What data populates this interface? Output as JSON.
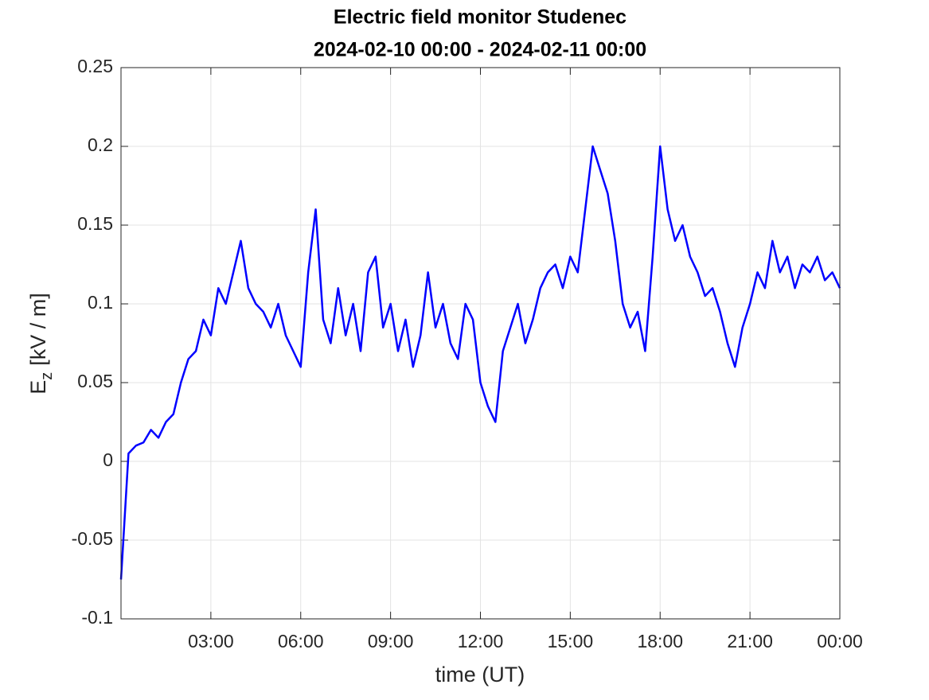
{
  "chart_data": {
    "type": "line",
    "title": "Electric field monitor Studenec",
    "subtitle": "2024-02-10 00:00 - 2024-02-11 00:00",
    "xlabel": "time (UT)",
    "ylabel": [
      "E",
      "z",
      "[kV / m]"
    ],
    "xlim": [
      0,
      24
    ],
    "xticks": [
      {
        "value": 3,
        "label": "03:00"
      },
      {
        "value": 6,
        "label": "06:00"
      },
      {
        "value": 9,
        "label": "09:00"
      },
      {
        "value": 12,
        "label": "12:00"
      },
      {
        "value": 15,
        "label": "15:00"
      },
      {
        "value": 18,
        "label": "18:00"
      },
      {
        "value": 21,
        "label": "21:00"
      },
      {
        "value": 24,
        "label": "00:00"
      }
    ],
    "ylim": [
      -0.1,
      0.25
    ],
    "yticks": [
      -0.1,
      -0.05,
      0,
      0.05,
      0.1,
      0.15,
      0.2,
      0.25
    ],
    "grid": true,
    "series": [
      {
        "color": "#0000ff",
        "x": [
          0,
          0.25,
          0.5,
          0.75,
          1,
          1.25,
          1.5,
          1.75,
          2,
          2.25,
          2.5,
          2.75,
          3,
          3.25,
          3.5,
          3.75,
          4,
          4.25,
          4.5,
          4.75,
          5,
          5.25,
          5.5,
          5.75,
          6,
          6.25,
          6.5,
          6.75,
          7,
          7.25,
          7.5,
          7.75,
          8,
          8.25,
          8.5,
          8.75,
          9,
          9.25,
          9.5,
          9.75,
          10,
          10.25,
          10.5,
          10.75,
          11,
          11.25,
          11.5,
          11.75,
          12,
          12.25,
          12.5,
          12.75,
          13,
          13.25,
          13.5,
          13.75,
          14,
          14.25,
          14.5,
          14.75,
          15,
          15.25,
          15.5,
          15.75,
          16,
          16.25,
          16.5,
          16.75,
          17,
          17.25,
          17.5,
          17.75,
          18,
          18.25,
          18.5,
          18.75,
          19,
          19.25,
          19.5,
          19.75,
          20,
          20.25,
          20.5,
          20.75,
          21,
          21.25,
          21.5,
          21.75,
          22,
          22.25,
          22.5,
          22.75,
          23,
          23.25,
          23.5,
          23.75,
          24
        ],
        "values": [
          -0.075,
          0.005,
          0.01,
          0.012,
          0.02,
          0.015,
          0.025,
          0.03,
          0.05,
          0.065,
          0.07,
          0.09,
          0.08,
          0.11,
          0.1,
          0.12,
          0.14,
          0.11,
          0.1,
          0.095,
          0.085,
          0.1,
          0.08,
          0.07,
          0.06,
          0.12,
          0.16,
          0.09,
          0.075,
          0.11,
          0.08,
          0.1,
          0.07,
          0.12,
          0.13,
          0.085,
          0.1,
          0.07,
          0.09,
          0.06,
          0.08,
          0.12,
          0.085,
          0.1,
          0.075,
          0.065,
          0.1,
          0.09,
          0.05,
          0.035,
          0.025,
          0.07,
          0.085,
          0.1,
          0.075,
          0.09,
          0.11,
          0.12,
          0.125,
          0.11,
          0.13,
          0.12,
          0.16,
          0.2,
          0.185,
          0.17,
          0.14,
          0.1,
          0.085,
          0.095,
          0.07,
          0.13,
          0.2,
          0.16,
          0.14,
          0.15,
          0.13,
          0.12,
          0.105,
          0.11,
          0.095,
          0.075,
          0.06,
          0.085,
          0.1,
          0.12,
          0.11,
          0.14,
          0.12,
          0.13,
          0.11,
          0.125,
          0.12,
          0.13,
          0.115,
          0.12,
          0.11
        ]
      }
    ]
  }
}
